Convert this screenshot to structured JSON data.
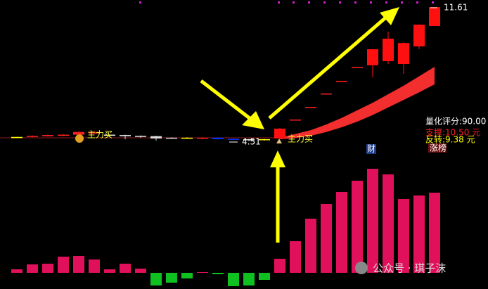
{
  "chart_data": {
    "type": "candlestick",
    "open": [
      4.68,
      4.74,
      4.78,
      4.8,
      4.86,
      4.92,
      4.86,
      4.84,
      4.8,
      4.78,
      4.7,
      4.7,
      4.7,
      4.7,
      4.64,
      4.62,
      4.62,
      4.66,
      5.66,
      6.33,
      7.04,
      7.71,
      8.45,
      8.53,
      8.75,
      8.6,
      9.53,
      10.61
    ],
    "high": [
      4.74,
      4.82,
      4.86,
      4.88,
      5.03,
      5.05,
      4.88,
      4.86,
      4.82,
      4.8,
      4.72,
      4.72,
      4.72,
      4.72,
      4.66,
      4.64,
      4.64,
      5.22,
      5.66,
      6.33,
      7.04,
      7.71,
      8.45,
      9.4,
      10.31,
      9.75,
      10.7,
      11.61
    ],
    "low": [
      4.68,
      4.72,
      4.76,
      4.78,
      4.84,
      4.9,
      4.76,
      4.62,
      4.7,
      4.55,
      4.64,
      4.64,
      4.62,
      4.6,
      4.58,
      4.51,
      4.55,
      4.64,
      5.66,
      6.33,
      7.04,
      7.71,
      8.45,
      7.89,
      8.6,
      8.08,
      9.38,
      10.61
    ],
    "close": [
      4.74,
      4.8,
      4.84,
      4.86,
      5.0,
      5.0,
      4.8,
      4.78,
      4.74,
      4.66,
      4.66,
      4.66,
      4.66,
      4.62,
      4.6,
      4.56,
      4.58,
      5.18,
      5.66,
      6.33,
      7.04,
      7.71,
      8.45,
      9.38,
      9.94,
      9.71,
      10.68,
      11.61
    ],
    "candle_colors": [
      "#ffff00",
      "#ff2020",
      "#ff2020",
      "#ff2020",
      "#ff2020",
      "#ff2020",
      "#dddddd",
      "#dddddd",
      "#dddddd",
      "#dddddd",
      "#dddddd",
      "#ffff00",
      "#ff2020",
      "#0033ff",
      "#0033ff",
      "#dddddd",
      "#ffff00",
      "#ff1010",
      "#ff2020",
      "#ff2020",
      "#ff2020",
      "#ff2020",
      "#ff2020",
      "#ff1010",
      "#ff1010",
      "#ff1010",
      "#ff1010",
      "#ff1010"
    ],
    "ylim": [
      3.8,
      11.8
    ],
    "band_upper": [
      null,
      null,
      null,
      null,
      null,
      null,
      null,
      null,
      null,
      null,
      null,
      null,
      null,
      null,
      null,
      null,
      null,
      4.7,
      4.9,
      5.1,
      5.4,
      5.75,
      6.15,
      6.55,
      7.0,
      7.45,
      7.95,
      8.45
    ],
    "band_lower": [
      null,
      null,
      null,
      null,
      null,
      null,
      null,
      null,
      null,
      null,
      null,
      null,
      null,
      null,
      null,
      null,
      null,
      4.62,
      4.68,
      4.8,
      5.0,
      5.25,
      5.55,
      5.9,
      6.3,
      6.7,
      7.1,
      7.52
    ],
    "band_color": "#ff3030",
    "histogram_values": [
      5,
      12,
      13,
      23,
      24,
      19,
      5,
      13,
      6,
      -18,
      -14,
      -8,
      1,
      -2,
      -19,
      -18,
      -10,
      20,
      45,
      77,
      98,
      115,
      131,
      148,
      140,
      105,
      110,
      114
    ],
    "histogram_ylim": [
      -20,
      150
    ],
    "histogram_up_color": "#e0105a",
    "histogram_down_color": "#10c020",
    "high_label": "11.61",
    "low_label": "4.51",
    "buy_label_1": "主力买",
    "buy_label_2": "主力买",
    "score": "量化评分:90.00",
    "support": "支撑:10.50 元",
    "reversal": "反转:9.38 元",
    "rank": "涨榜",
    "finance": "财",
    "watermark": "公众号 · 琪子沫"
  }
}
